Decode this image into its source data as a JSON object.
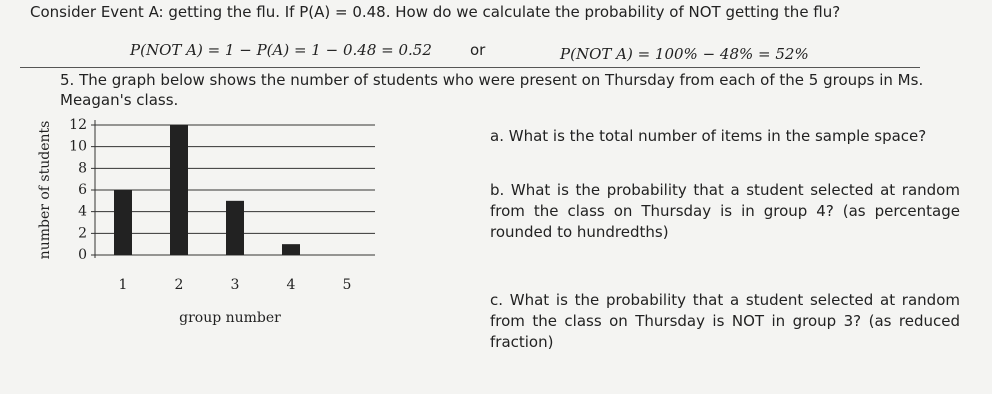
{
  "intro": "Consider Event A: getting the flu. If P(A) = 0.48. How do we calculate the probability of NOT getting the flu?",
  "formula_1": "P(NOT A) = 1 − P(A) = 1 − 0.48 = 0.52",
  "formula_or": "or",
  "formula_2": "P(NOT A) = 100% − 48% = 52%",
  "problem": "5. The graph below shows the number of students who were present on Thursday from each of the 5 groups in Ms. Meagan's class.",
  "questions": [
    {
      "label": "a.",
      "text": "What is the total number of items in the sample space?"
    },
    {
      "label": "b.",
      "text": "What is the probability that a student selected at random from the class on Thursday is in group 4? (as percentage rounded to hundredths)"
    },
    {
      "label": "c.",
      "text": "What is the probability that a student selected at random from the class on Thursday is NOT in group 3? (as reduced fraction)"
    }
  ],
  "chart_data": {
    "type": "bar",
    "x_label": "group number",
    "y_label": "number of students",
    "categories": [
      "1",
      "2",
      "3",
      "4",
      "5"
    ],
    "values": [
      6,
      12,
      5,
      1,
      0
    ],
    "color": "#222",
    "ylim": [
      0,
      12
    ],
    "yticks": [
      0,
      2,
      4,
      6,
      8,
      10,
      12
    ],
    "grid": true
  }
}
